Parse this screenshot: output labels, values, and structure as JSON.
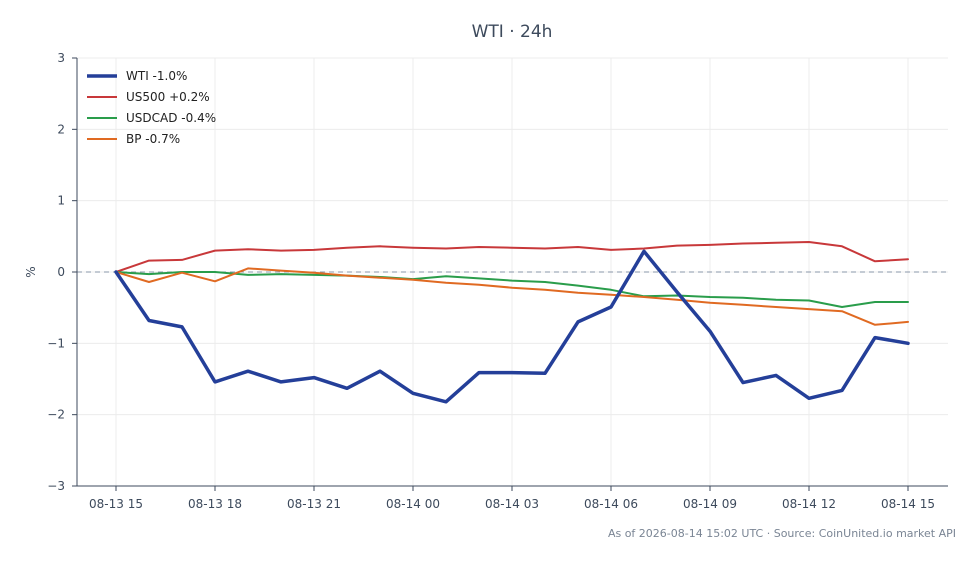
{
  "chart_data": {
    "type": "line",
    "title": "WTI · 24h",
    "ylabel": "%",
    "xlabel": "",
    "ylim": [
      -3,
      3
    ],
    "yticks": [
      3,
      2,
      1,
      0,
      -1,
      -2,
      -3
    ],
    "ytick_labels": [
      "3",
      "2",
      "1",
      "0",
      "−1",
      "−2",
      "−3"
    ],
    "xlim": [
      0,
      24
    ],
    "x": [
      0,
      1,
      2,
      3,
      4,
      5,
      6,
      7,
      8,
      9,
      10,
      11,
      12,
      13,
      14,
      15,
      16,
      17,
      18,
      19,
      20,
      21,
      22,
      23,
      24
    ],
    "xticks": [
      0,
      3,
      6,
      9,
      12,
      15,
      18,
      21,
      24
    ],
    "xtick_labels": [
      "08-13 15",
      "08-13 18",
      "08-13 21",
      "08-14 00",
      "08-14 03",
      "08-14 06",
      "08-14 09",
      "08-14 12",
      "08-14 15"
    ],
    "grid": true,
    "zero_line": true,
    "legend_position": "top-left",
    "series": [
      {
        "name": "WTI -1.0%",
        "color": "#243f99",
        "width": 3.5,
        "values": [
          0.0,
          -0.68,
          -0.77,
          -1.54,
          -1.39,
          -1.54,
          -1.48,
          -1.63,
          -1.39,
          -1.7,
          -1.82,
          -1.41,
          -1.41,
          -1.42,
          -0.7,
          -0.49,
          0.29,
          -0.28,
          -0.83,
          -1.55,
          -1.45,
          -1.77,
          -1.66,
          -0.92,
          -1.0
        ]
      },
      {
        "name": "US500 +0.2%",
        "color": "#c8383a",
        "width": 2,
        "values": [
          0.0,
          0.16,
          0.17,
          0.3,
          0.32,
          0.3,
          0.31,
          0.34,
          0.36,
          0.34,
          0.33,
          0.35,
          0.34,
          0.33,
          0.35,
          0.31,
          0.33,
          0.37,
          0.38,
          0.4,
          0.41,
          0.42,
          0.36,
          0.15,
          0.18
        ]
      },
      {
        "name": "USDCAD -0.4%",
        "color": "#2a9d4b",
        "width": 2,
        "values": [
          0.0,
          -0.03,
          0.0,
          0.0,
          -0.04,
          -0.03,
          -0.04,
          -0.05,
          -0.07,
          -0.1,
          -0.06,
          -0.09,
          -0.12,
          -0.14,
          -0.19,
          -0.25,
          -0.34,
          -0.33,
          -0.35,
          -0.36,
          -0.39,
          -0.4,
          -0.49,
          -0.42,
          -0.42
        ]
      },
      {
        "name": "BP -0.7%",
        "color": "#e06a22",
        "width": 2,
        "values": [
          0.0,
          -0.14,
          -0.01,
          -0.13,
          0.05,
          0.02,
          -0.01,
          -0.05,
          -0.08,
          -0.11,
          -0.15,
          -0.18,
          -0.22,
          -0.25,
          -0.29,
          -0.32,
          -0.35,
          -0.39,
          -0.43,
          -0.46,
          -0.49,
          -0.52,
          -0.55,
          -0.74,
          -0.7
        ]
      }
    ]
  },
  "footer": "As of 2026-08-14 15:02 UTC · Source: CoinUnited.io market API"
}
